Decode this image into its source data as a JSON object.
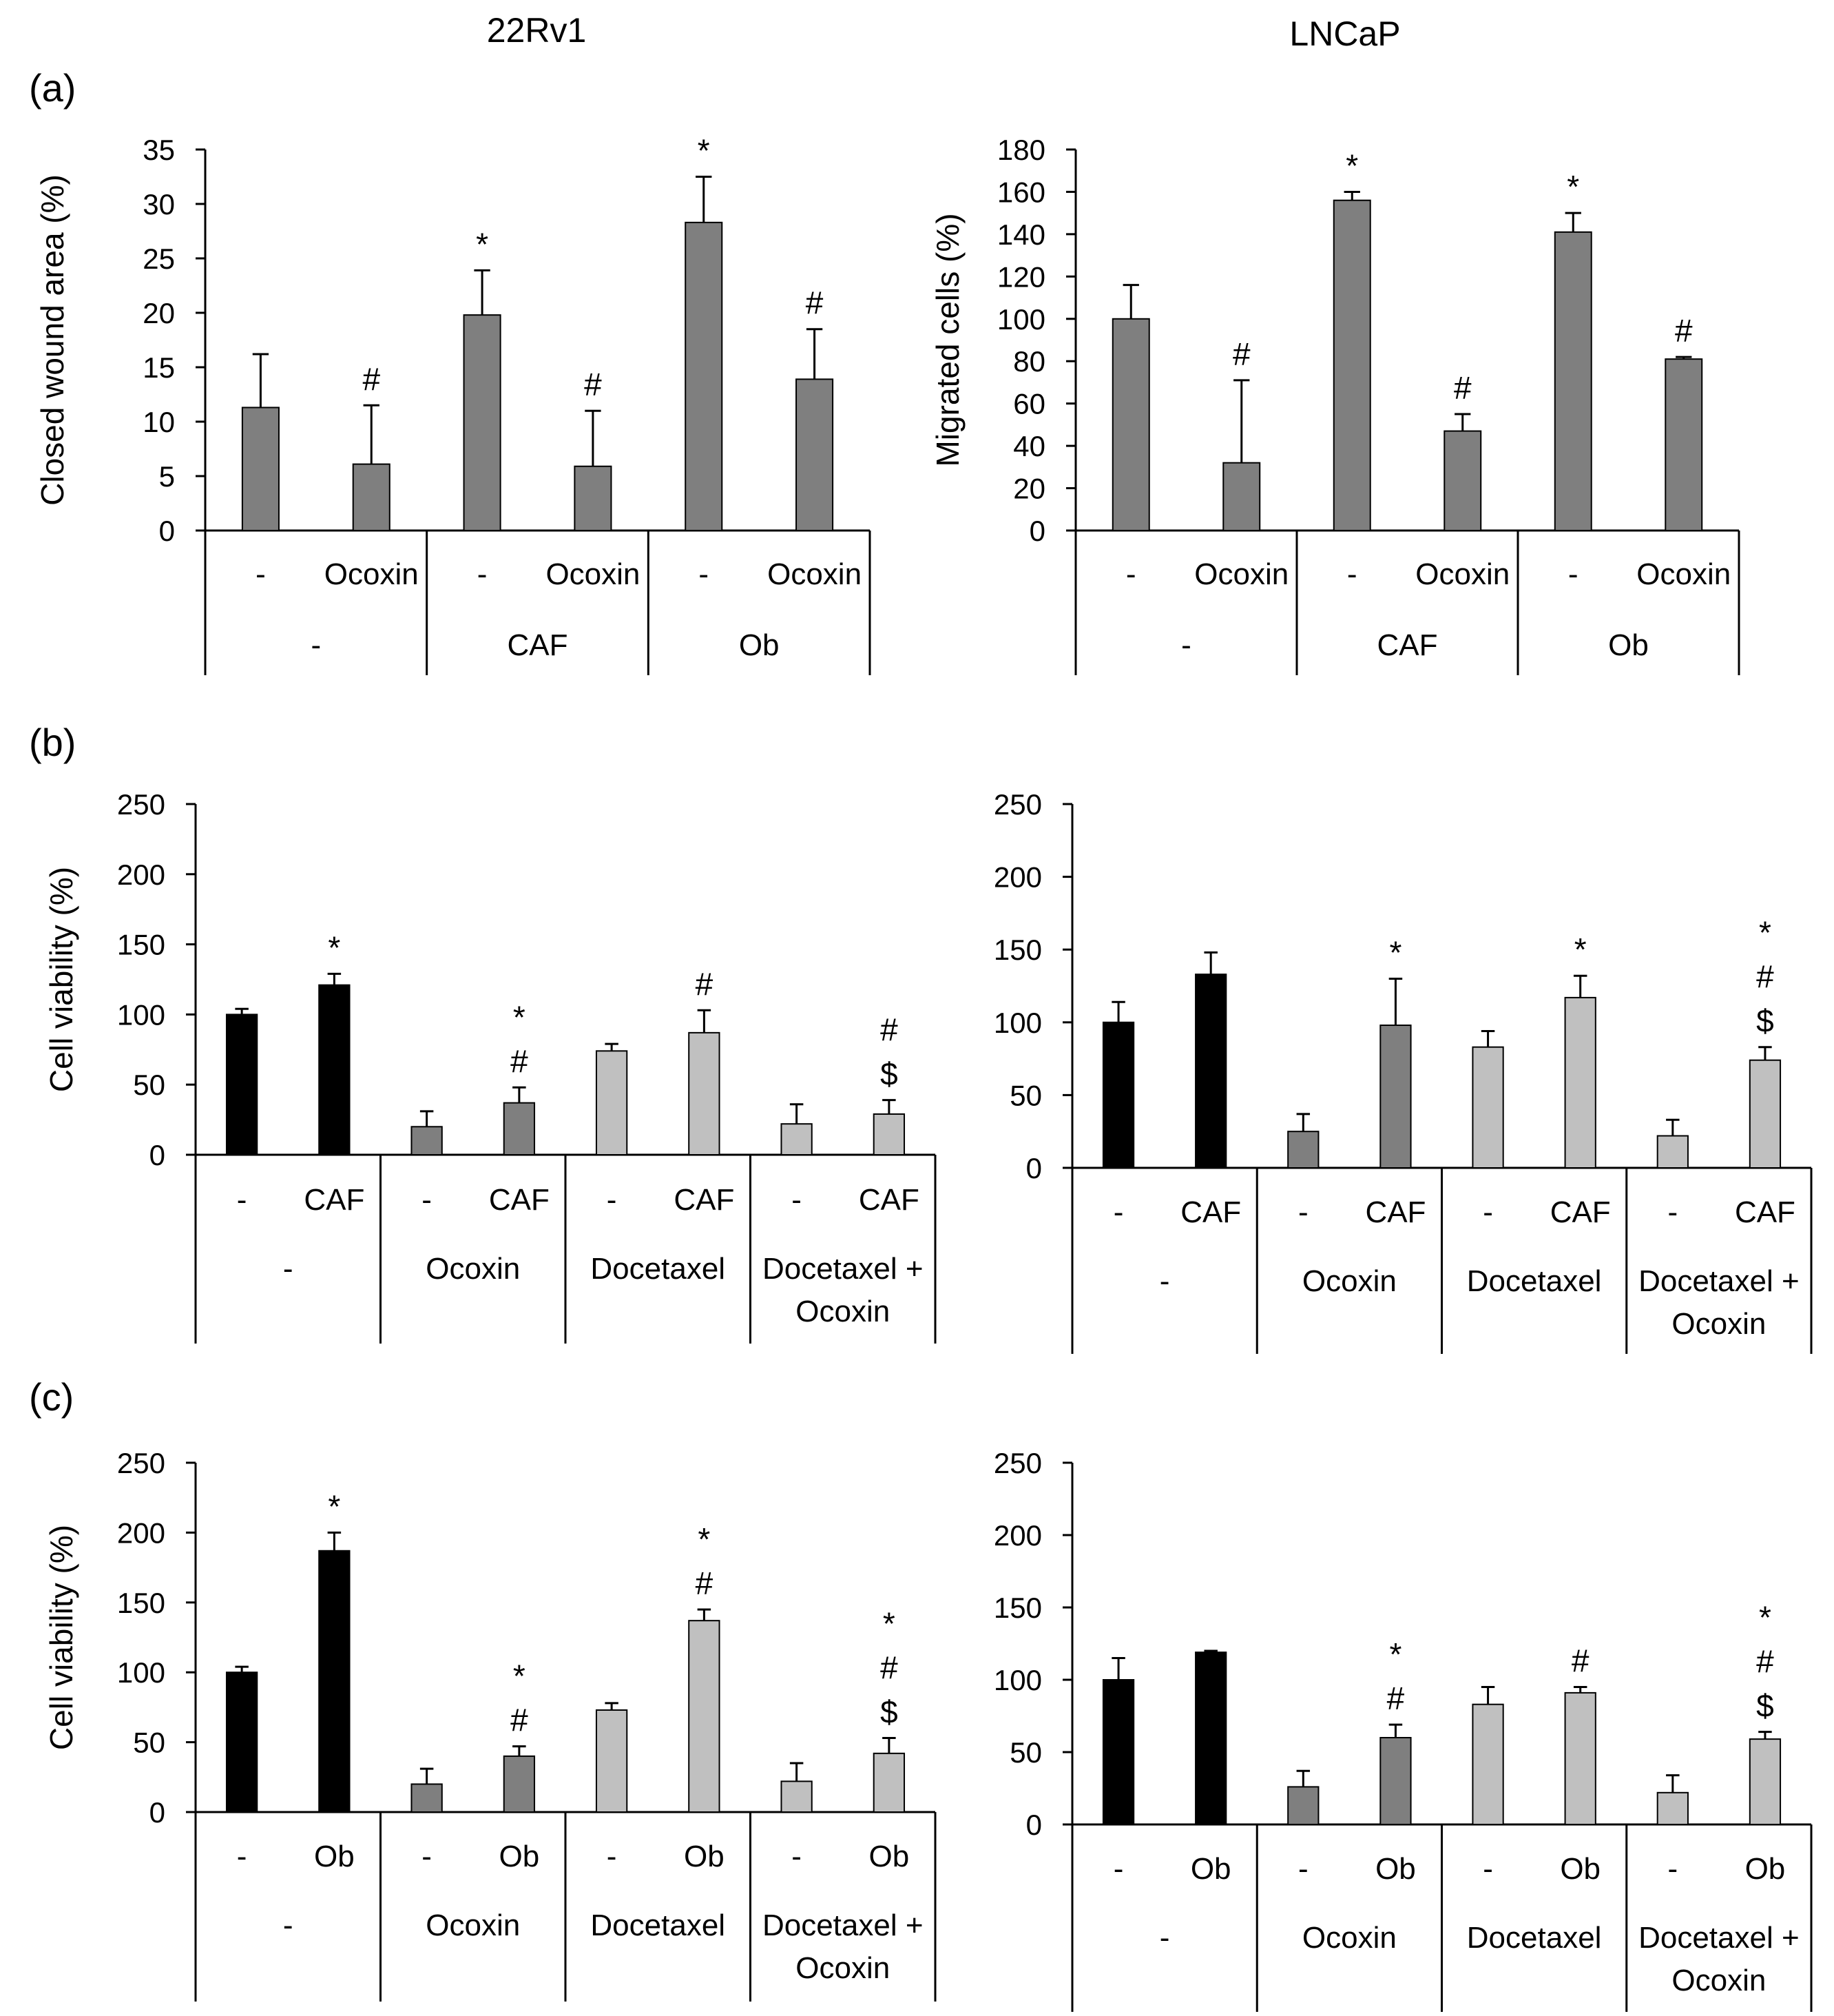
{
  "titles": {
    "left": "22Rv1",
    "right": "LNCaP"
  },
  "panels": {
    "a": "(a)",
    "b": "(b)",
    "c": "(c)"
  },
  "colors": {
    "black": "#000000",
    "dark": "#7f7f7f",
    "light": "#c0c0c0"
  },
  "chart_data": [
    {
      "id": "a-22rv1",
      "type": "bar",
      "panel": "a",
      "cell_line": "22Rv1",
      "ylabel": "Closed wound area (%)",
      "ylim": [
        0,
        35
      ],
      "yticks": [
        0,
        5,
        10,
        15,
        20,
        25,
        30,
        35
      ],
      "sub_labels": [
        "-",
        "Ocoxin",
        "-",
        "Ocoxin",
        "-",
        "Ocoxin"
      ],
      "groups": [
        "-",
        "CAF",
        "Ob"
      ],
      "values": [
        11.3,
        6.1,
        19.8,
        5.9,
        28.3,
        13.9
      ],
      "errors": [
        4.9,
        5.4,
        4.1,
        5.1,
        4.2,
        4.6
      ],
      "colors": [
        "dark",
        "dark",
        "dark",
        "dark",
        "dark",
        "dark"
      ],
      "annotations": [
        "",
        "#",
        "*",
        "#",
        "*",
        "#"
      ]
    },
    {
      "id": "a-lncap",
      "type": "bar",
      "panel": "a",
      "cell_line": "LNCaP",
      "ylabel": "Migrated cells (%)",
      "ylim": [
        0,
        180
      ],
      "yticks": [
        0,
        20,
        40,
        60,
        80,
        100,
        120,
        140,
        160,
        180
      ],
      "sub_labels": [
        "-",
        "Ocoxin",
        "-",
        "Ocoxin",
        "-",
        "Ocoxin"
      ],
      "groups": [
        "-",
        "CAF",
        "Ob"
      ],
      "values": [
        100,
        32,
        156,
        47,
        141,
        81
      ],
      "errors": [
        16,
        39,
        4,
        8,
        9,
        1
      ],
      "colors": [
        "dark",
        "dark",
        "dark",
        "dark",
        "dark",
        "dark"
      ],
      "annotations": [
        "",
        "#",
        "*",
        "#",
        "*",
        "#"
      ]
    },
    {
      "id": "b-22rv1",
      "type": "bar",
      "panel": "b",
      "cell_line": "22Rv1",
      "ylabel": "Cell viability (%)",
      "ylim": [
        0,
        250
      ],
      "yticks": [
        0,
        50,
        100,
        150,
        200,
        250
      ],
      "sub_labels": [
        "-",
        "CAF",
        "-",
        "CAF",
        "-",
        "CAF",
        "-",
        "CAF"
      ],
      "groups": [
        "-",
        "Ocoxin",
        "Docetaxel",
        "Docetaxel +\nOcoxin"
      ],
      "values": [
        100,
        121,
        20,
        37,
        74,
        87,
        22,
        29
      ],
      "errors": [
        4,
        8,
        11,
        11,
        5,
        16,
        14,
        10
      ],
      "colors": [
        "black",
        "black",
        "dark",
        "dark",
        "light",
        "light",
        "light",
        "light"
      ],
      "annotations": [
        "",
        "*",
        "",
        "*\n#",
        "",
        "#",
        "",
        "#\n$"
      ]
    },
    {
      "id": "b-lncap",
      "type": "bar",
      "panel": "b",
      "cell_line": "LNCaP",
      "ylabel": "",
      "ylim": [
        0,
        250
      ],
      "yticks": [
        0,
        50,
        100,
        150,
        200,
        250
      ],
      "sub_labels": [
        "-",
        "CAF",
        "-",
        "CAF",
        "-",
        "CAF",
        "-",
        "CAF"
      ],
      "groups": [
        "-",
        "Ocoxin",
        "Docetaxel",
        "Docetaxel +\nOcoxin"
      ],
      "values": [
        100,
        133,
        25,
        98,
        83,
        117,
        22,
        74
      ],
      "errors": [
        14,
        15,
        12,
        32,
        11,
        15,
        11,
        9
      ],
      "colors": [
        "black",
        "black",
        "dark",
        "dark",
        "light",
        "light",
        "light",
        "light"
      ],
      "annotations": [
        "",
        "",
        "",
        "*",
        "",
        "*",
        "",
        "*\n#\n$"
      ]
    },
    {
      "id": "c-22rv1",
      "type": "bar",
      "panel": "c",
      "cell_line": "22Rv1",
      "ylabel": "Cell viability (%)",
      "ylim": [
        0,
        250
      ],
      "yticks": [
        0,
        50,
        100,
        150,
        200,
        250
      ],
      "sub_labels": [
        "-",
        "Ob",
        "-",
        "Ob",
        "-",
        "Ob",
        "-",
        "Ob"
      ],
      "groups": [
        "-",
        "Ocoxin",
        "Docetaxel",
        "Docetaxel +\nOcoxin"
      ],
      "values": [
        100,
        187,
        20,
        40,
        73,
        137,
        22,
        42
      ],
      "errors": [
        4,
        13,
        11,
        7,
        5,
        8,
        13,
        11
      ],
      "colors": [
        "black",
        "black",
        "dark",
        "dark",
        "light",
        "light",
        "light",
        "light"
      ],
      "annotations": [
        "",
        "*",
        "",
        "*\n#",
        "",
        "*\n#",
        "",
        "*\n#\n$"
      ]
    },
    {
      "id": "c-lncap",
      "type": "bar",
      "panel": "c",
      "cell_line": "LNCaP",
      "ylabel": "",
      "ylim": [
        0,
        250
      ],
      "yticks": [
        0,
        50,
        100,
        150,
        200,
        250
      ],
      "sub_labels": [
        "-",
        "Ob",
        "-",
        "Ob",
        "-",
        "Ob",
        "-",
        "Ob"
      ],
      "groups": [
        "-",
        "Ocoxin",
        "Docetaxel",
        "Docetaxel +\nOcoxin"
      ],
      "values": [
        100,
        119,
        26,
        60,
        83,
        91,
        22,
        59
      ],
      "errors": [
        15,
        1,
        11,
        9,
        12,
        4,
        12,
        5
      ],
      "colors": [
        "black",
        "black",
        "dark",
        "dark",
        "light",
        "light",
        "light",
        "light"
      ],
      "annotations": [
        "",
        "",
        "",
        "*\n#",
        "",
        "#",
        "",
        "*\n#\n$"
      ]
    }
  ]
}
